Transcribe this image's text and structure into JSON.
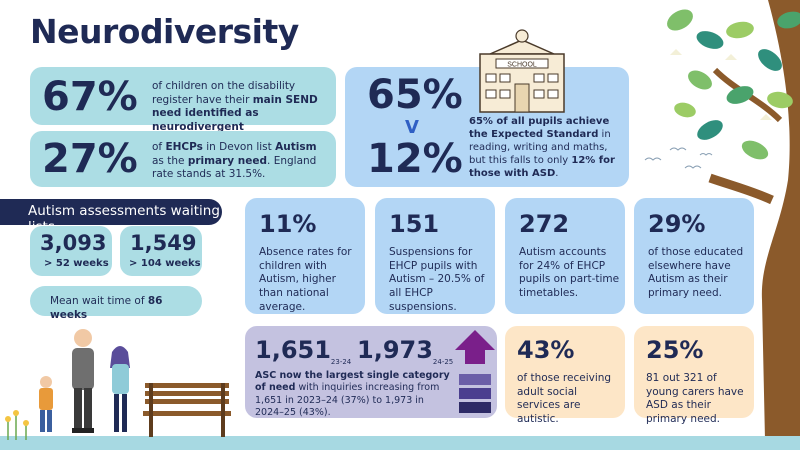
{
  "title": "Neurodiversity",
  "stat_send": {
    "value": "67%",
    "text_pre": "of children on the disability register have their ",
    "text_bold": "main SEND need identified as neurodivergent"
  },
  "stat_ehcp": {
    "value": "27%",
    "text_pre": "of ",
    "text_bold1": "EHCPs",
    "text_mid": " in Devon list ",
    "text_bold2": "Autism",
    "text_mid2": " as the ",
    "text_bold3": "primary need",
    "text_post": ". England rate stands at 31.5%."
  },
  "expected": {
    "value_all": "65%",
    "versus": "V",
    "value_asd": "12%",
    "school_sign": "SCHOOL",
    "text_bold1": "65% of all pupils achieve the Expected Standard",
    "text_mid": " in reading, writing and maths, but this falls to only ",
    "text_bold2": "12% for those with ASD",
    "text_post": "."
  },
  "waiting": {
    "banner": "Autism assessments waiting lists",
    "items": [
      {
        "value": "3,093",
        "label": "> 52 weeks"
      },
      {
        "value": "1,549",
        "label": "> 104 weeks"
      }
    ],
    "mean_pre": "Mean wait time of ",
    "mean_bold": "86 weeks"
  },
  "cards_row": [
    {
      "value": "11%",
      "text": "Absence rates for children with Autism, higher than national average."
    },
    {
      "value": "151",
      "text": "Suspensions for EHCP pupils with Autism – 20.5% of all EHCP suspensions."
    },
    {
      "value": "272",
      "text": "Autism accounts for 24% of EHCP pupils on part-time timetables."
    },
    {
      "value": "29%",
      "text": "of those educated elsewhere have Autism as their primary need."
    }
  ],
  "asc": {
    "value1": "1,651",
    "year1": "23-24",
    "value2": "1,973",
    "year2": "24-25",
    "text_bold": "ASC now the largest single category of need",
    "text_post": " with inquiries increasing from 1,651 in 2023–24 (37%) to 1,973 in 2024–25 (43%).",
    "bar_colors": [
      "#6b5ea8",
      "#4b3f8f",
      "#2d2a66"
    ],
    "arrow_color": "#7a1f8a"
  },
  "adult": {
    "value": "43%",
    "text": "of those receiving adult social services are autistic."
  },
  "carers": {
    "value": "25%",
    "text": "81 out 321 of young carers have ASD as their primary need."
  },
  "colors": {
    "navy": "#1f2a55",
    "teal": "#acdde4",
    "blue": "#b3d6f5",
    "peach": "#fde6c7",
    "purple": "#c4c2e0",
    "vs": "#2f5fc4"
  }
}
